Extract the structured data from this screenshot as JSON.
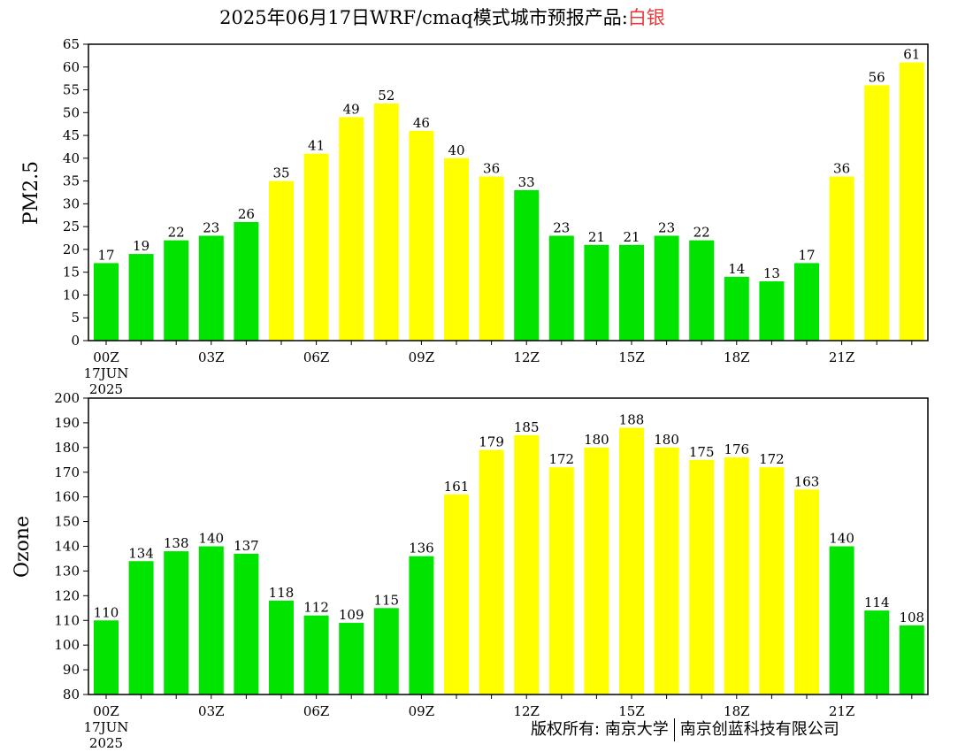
{
  "title": {
    "prefix": "2025年06月17日WRF/cmaq模式城市预报产品:",
    "city": "白银"
  },
  "copyright": {
    "left": "版权所有: 南京大学",
    "right": "南京创蓝科技有限公司"
  },
  "colors": {
    "green": "#00e400",
    "yellow": "#ffff00"
  },
  "chart_data": [
    {
      "type": "bar",
      "ylabel": "PM2.5",
      "ylim": [
        0,
        65
      ],
      "yticks": [
        0,
        5,
        10,
        15,
        20,
        25,
        30,
        35,
        40,
        45,
        50,
        55,
        60,
        65
      ],
      "hours": [
        0,
        1,
        2,
        3,
        4,
        5,
        6,
        7,
        8,
        9,
        10,
        11,
        12,
        13,
        14,
        15,
        16,
        17,
        18,
        19,
        20,
        21,
        22,
        23
      ],
      "values": [
        17,
        19,
        22,
        23,
        26,
        35,
        41,
        49,
        52,
        46,
        40,
        36,
        33,
        23,
        21,
        21,
        23,
        22,
        14,
        13,
        17,
        36,
        56,
        61
      ],
      "colors": [
        "green",
        "green",
        "green",
        "green",
        "green",
        "yellow",
        "yellow",
        "yellow",
        "yellow",
        "yellow",
        "yellow",
        "yellow",
        "green",
        "green",
        "green",
        "green",
        "green",
        "green",
        "green",
        "green",
        "green",
        "yellow",
        "yellow",
        "yellow"
      ],
      "xticks": [
        "00Z",
        "03Z",
        "06Z",
        "09Z",
        "12Z",
        "15Z",
        "18Z",
        "21Z"
      ],
      "date_label": [
        "17JUN",
        "2025"
      ]
    },
    {
      "type": "bar",
      "ylabel": "Ozone",
      "ylim": [
        80,
        200
      ],
      "yticks": [
        80,
        90,
        100,
        110,
        120,
        130,
        140,
        150,
        160,
        170,
        180,
        190,
        200
      ],
      "hours": [
        0,
        1,
        2,
        3,
        4,
        5,
        6,
        7,
        8,
        9,
        10,
        11,
        12,
        13,
        14,
        15,
        16,
        17,
        18,
        19,
        20,
        21,
        22,
        23
      ],
      "values": [
        110,
        134,
        138,
        140,
        137,
        118,
        112,
        109,
        115,
        136,
        161,
        179,
        185,
        172,
        180,
        188,
        180,
        175,
        176,
        172,
        163,
        140,
        114,
        108
      ],
      "colors": [
        "green",
        "green",
        "green",
        "green",
        "green",
        "green",
        "green",
        "green",
        "green",
        "green",
        "yellow",
        "yellow",
        "yellow",
        "yellow",
        "yellow",
        "yellow",
        "yellow",
        "yellow",
        "yellow",
        "yellow",
        "yellow",
        "green",
        "green",
        "green"
      ],
      "xticks": [
        "00Z",
        "03Z",
        "06Z",
        "09Z",
        "12Z",
        "15Z",
        "18Z",
        "21Z"
      ],
      "date_label": [
        "17JUN",
        "2025"
      ]
    }
  ]
}
